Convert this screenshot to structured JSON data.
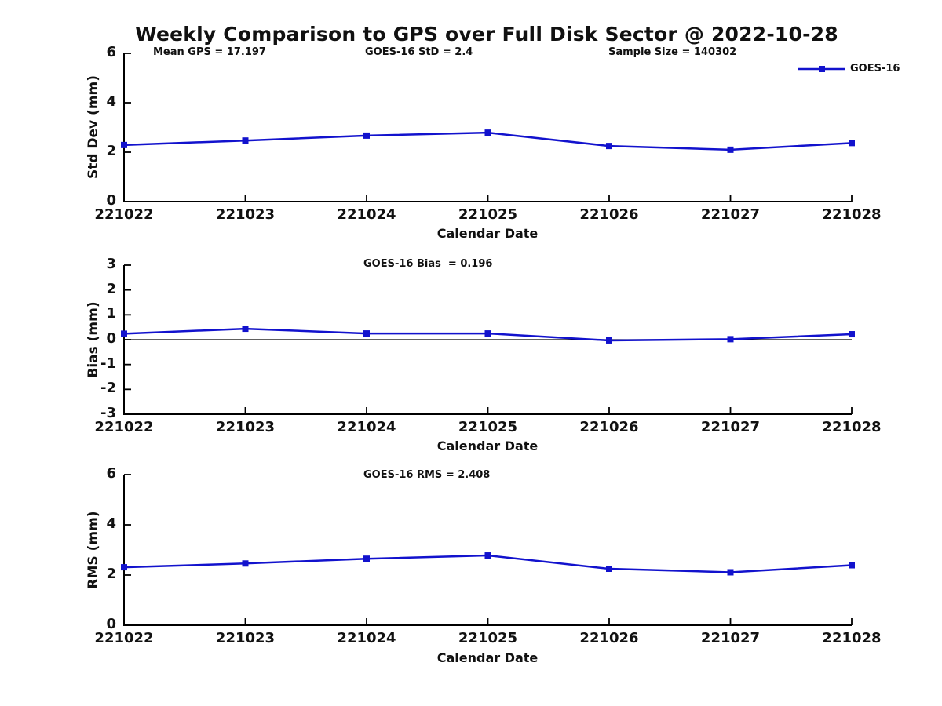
{
  "title": "Weekly Comparison to GPS over Full Disk Sector @ 2022-10-28",
  "legend": {
    "label": "GOES-16",
    "series_color": "#1212cd",
    "position": "top-right"
  },
  "chart_data": [
    {
      "type": "line",
      "ylabel": "Std Dev (mm)",
      "xlabel": "Calendar Date",
      "categories": [
        "221022",
        "221023",
        "221024",
        "221025",
        "221026",
        "221027",
        "221028"
      ],
      "series": [
        {
          "name": "GOES-16",
          "values": [
            2.29,
            2.47,
            2.67,
            2.79,
            2.25,
            2.1,
            2.37
          ]
        }
      ],
      "ylim": [
        0,
        6
      ],
      "yticks": [
        0,
        2,
        4,
        6
      ],
      "grid": false,
      "zero_line": false,
      "annotations": [
        "Mean GPS = 17.197",
        "GOES-16 StD = 2.4",
        "Sample Size = 140302"
      ]
    },
    {
      "type": "line",
      "ylabel": "Bias (mm)",
      "xlabel": "Calendar Date",
      "categories": [
        "221022",
        "221023",
        "221024",
        "221025",
        "221026",
        "221027",
        "221028"
      ],
      "series": [
        {
          "name": "GOES-16",
          "values": [
            0.24,
            0.44,
            0.25,
            0.25,
            -0.03,
            0.02,
            0.22
          ]
        }
      ],
      "ylim": [
        -3,
        3
      ],
      "yticks": [
        -3,
        -2,
        -1,
        0,
        1,
        2,
        3
      ],
      "grid": false,
      "zero_line": true,
      "annotations": [
        "GOES-16 Bias  = 0.196"
      ]
    },
    {
      "type": "line",
      "ylabel": "RMS (mm)",
      "xlabel": "Calendar Date",
      "categories": [
        "221022",
        "221023",
        "221024",
        "221025",
        "221026",
        "221027",
        "221028"
      ],
      "series": [
        {
          "name": "GOES-16",
          "values": [
            2.31,
            2.46,
            2.65,
            2.78,
            2.25,
            2.11,
            2.39
          ]
        }
      ],
      "ylim": [
        0,
        6
      ],
      "yticks": [
        0,
        2,
        4,
        6
      ],
      "grid": false,
      "zero_line": false,
      "annotations": [
        "GOES-16 RMS = 2.408"
      ]
    }
  ]
}
